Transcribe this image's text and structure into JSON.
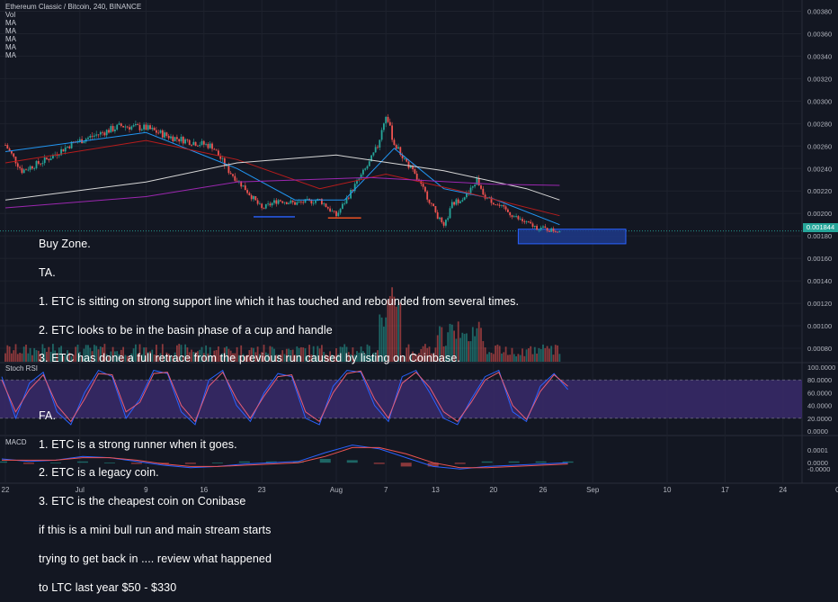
{
  "header": {
    "symbol": "Ethereum Classic / Bitcoin, 240, BINANCE",
    "indicators": [
      "Vol",
      "MA",
      "MA",
      "MA",
      "MA",
      "MA"
    ]
  },
  "price_tag": "0.001844",
  "annotation": {
    "lines": [
      "Buy Zone.",
      "TA.",
      "1. ETC is sitting on strong support line which it has touched and rebounded from several times.",
      "2. ETC looks to be in the basin phase of a cup and handle",
      "3. ETC has done a full retrace from the previous run caused by listing on Coinbase.",
      "",
      "FA.",
      "1. ETC is a strong runner when it goes.",
      "2. ETC is a legacy coin.",
      "3. ETC is the cheapest coin on Conibase",
      "if this is a mini bull run and main stream starts",
      "trying to get back in .... review what happened",
      "to LTC last year $50 - $330"
    ]
  },
  "panes": {
    "stoch_label": "Stoch RSI",
    "macd_label": "MACD"
  },
  "colors": {
    "background": "#131722",
    "up": "#26a69a",
    "down": "#ef5350",
    "stoch_band": "#3a2a6b",
    "k_line": "#2962ff",
    "d_line": "#e85d75",
    "buy_zone": "#1e3a8a"
  },
  "chart_data": [
    {
      "type": "candlestick",
      "title": "Ethereum Classic / Bitcoin, 240, BINANCE",
      "x_ticks": [
        "22",
        "Jul",
        "9",
        "16",
        "23",
        "Aug",
        "7",
        "13",
        "20",
        "26",
        "Sep",
        "10",
        "17",
        "24",
        "Oct"
      ],
      "y_ticks": [
        0.0008,
        0.001,
        0.0012,
        0.0014,
        0.0016,
        0.0018,
        0.002,
        0.0022,
        0.0024,
        0.0026,
        0.0028,
        0.003,
        0.0032,
        0.0034,
        0.0036,
        0.0038
      ],
      "y_tick_labels": [
        "0.00080",
        "0.00100",
        "0.00120",
        "0.00140",
        "0.00160",
        "0.00180",
        "0.00200",
        "0.00220",
        "0.00240",
        "0.00260",
        "0.00280",
        "0.00300",
        "0.00320",
        "0.00340",
        "0.00360",
        "0.00380"
      ],
      "ylim": [
        0.00068,
        0.0039
      ],
      "last_price": 0.001844,
      "close_path": [
        [
          "Jun 22",
          0.00261
        ],
        [
          "Jun 24",
          0.00238
        ],
        [
          "Jun 27",
          0.00248
        ],
        [
          "Jun 30",
          0.00262
        ],
        [
          "Jul 3",
          0.0027
        ],
        [
          "Jul 6",
          0.00278
        ],
        [
          "Jul 9",
          0.00276
        ],
        [
          "Jul 12",
          0.00268
        ],
        [
          "Jul 15",
          0.00263
        ],
        [
          "Jul 17",
          0.0026
        ],
        [
          "Jul 19",
          0.00238
        ],
        [
          "Jul 21",
          0.00222
        ],
        [
          "Jul 23",
          0.00204
        ],
        [
          "Jul 25",
          0.00212
        ],
        [
          "Jul 27",
          0.00209
        ],
        [
          "Jul 30",
          0.00212
        ],
        [
          "Aug 1",
          0.00198
        ],
        [
          "Aug 3",
          0.00222
        ],
        [
          "Aug 5",
          0.00245
        ],
        [
          "Aug 6",
          0.0026
        ],
        [
          "Aug 7",
          0.00288
        ],
        [
          "Aug 8",
          0.00262
        ],
        [
          "Aug 10",
          0.0024
        ],
        [
          "Aug 12",
          0.00215
        ],
        [
          "Aug 14",
          0.00187
        ],
        [
          "Aug 15",
          0.00208
        ],
        [
          "Aug 17",
          0.00218
        ],
        [
          "Aug 18",
          0.0023
        ],
        [
          "Aug 19",
          0.00215
        ],
        [
          "Aug 21",
          0.00205
        ],
        [
          "Aug 23",
          0.00195
        ],
        [
          "Aug 25",
          0.00188
        ],
        [
          "Aug 27",
          0.00185
        ],
        [
          "Aug 28",
          0.001844
        ]
      ],
      "moving_averages": [
        {
          "color": "#2196f3",
          "values": [
            [
              "Jun 22",
              0.00255
            ],
            [
              "Jul 9",
              0.00272
            ],
            [
              "Jul 20",
              0.0024
            ],
            [
              "Jul 27",
              0.00212
            ],
            [
              "Aug 2",
              0.00212
            ],
            [
              "Aug 8",
              0.00258
            ],
            [
              "Aug 14",
              0.00222
            ],
            [
              "Aug 20",
              0.00213
            ],
            [
              "Aug 28",
              0.0019
            ]
          ]
        },
        {
          "color": "#b71c1c",
          "values": [
            [
              "Jun 22",
              0.00245
            ],
            [
              "Jul 9",
              0.00265
            ],
            [
              "Jul 20",
              0.00248
            ],
            [
              "Jul 30",
              0.00222
            ],
            [
              "Aug 7",
              0.00235
            ],
            [
              "Aug 16",
              0.0022
            ],
            [
              "Aug 28",
              0.00198
            ]
          ]
        },
        {
          "color": "#d7d7d7",
          "values": [
            [
              "Jun 22",
              0.00212
            ],
            [
              "Jul 9",
              0.00228
            ],
            [
              "Jul 20",
              0.00245
            ],
            [
              "Aug 1",
              0.00252
            ],
            [
              "Aug 14",
              0.00238
            ],
            [
              "Aug 24",
              0.00222
            ],
            [
              "Aug 28",
              0.00212
            ]
          ]
        },
        {
          "color": "#9c27b0",
          "values": [
            [
              "Jun 22",
              0.00205
            ],
            [
              "Jul 9",
              0.00215
            ],
            [
              "Jul 20",
              0.00228
            ],
            [
              "Aug 5",
              0.00232
            ],
            [
              "Aug 20",
              0.00226
            ],
            [
              "Aug 28",
              0.00225
            ]
          ]
        }
      ],
      "support_lines": [
        {
          "from": "Jul 22",
          "to": "Jul 27",
          "price": 0.00197,
          "color": "#2962ff"
        },
        {
          "from": "Jul 31",
          "to": "Aug 4",
          "price": 0.00196,
          "color": "#ff5722"
        }
      ],
      "buy_zone": {
        "from": "Aug 23",
        "to": "Sep 5",
        "price_top": 0.00186,
        "price_bottom": 0.00173
      }
    },
    {
      "type": "line",
      "title": "Stoch RSI",
      "y_tick_labels": [
        "0.0000",
        "20.0000",
        "40.0000",
        "60.0000",
        "80.0000",
        "100.0000"
      ],
      "ylim": [
        0,
        100
      ],
      "band": [
        20,
        80
      ],
      "series": [
        {
          "name": "",
          "color": "#2962ff",
          "values": [
            85,
            20,
            75,
            92,
            30,
            10,
            60,
            95,
            85,
            20,
            50,
            95,
            90,
            30,
            10,
            80,
            95,
            40,
            15,
            60,
            90,
            85,
            20,
            10,
            70,
            95,
            92,
            40,
            15,
            85,
            95,
            60,
            20,
            10,
            50,
            85,
            95,
            30,
            15,
            70,
            90,
            65
          ]
        },
        {
          "name": "",
          "color": "#e85d75",
          "values": [
            80,
            30,
            65,
            88,
            40,
            15,
            50,
            90,
            88,
            30,
            45,
            90,
            92,
            40,
            15,
            70,
            92,
            50,
            20,
            55,
            85,
            88,
            30,
            15,
            60,
            90,
            94,
            50,
            20,
            75,
            92,
            68,
            30,
            15,
            45,
            80,
            92,
            40,
            18,
            62,
            88,
            70
          ]
        }
      ]
    },
    {
      "type": "line",
      "title": "MACD",
      "y_tick_labels": [
        "-0.0000",
        "0.0000",
        "0.0001"
      ],
      "ylim": [
        -0.00012,
        0.00018
      ],
      "series": [
        {
          "name": "",
          "color": "#2962ff",
          "values": [
            3e-05,
            1e-05,
            2e-05,
            5e-05,
            4e-05,
            1e-05,
            -2e-05,
            -4e-05,
            -3e-05,
            -1e-05,
            0,
            1e-05,
            8e-05,
            0.00014,
            0.00011,
            4e-05,
            -3e-05,
            -5e-05,
            -3e-05,
            -2e-05,
            -1e-05,
            0
          ]
        },
        {
          "name": "",
          "color": "#ef5350",
          "values": [
            2e-05,
            2e-05,
            2e-05,
            4e-05,
            4e-05,
            2e-05,
            -1e-05,
            -3e-05,
            -3e-05,
            -2e-05,
            -1e-05,
            0,
            5e-05,
            0.00012,
            0.00012,
            7e-05,
            0,
            -4e-05,
            -4e-05,
            -3e-05,
            -2e-05,
            -1e-05
          ]
        }
      ]
    }
  ]
}
